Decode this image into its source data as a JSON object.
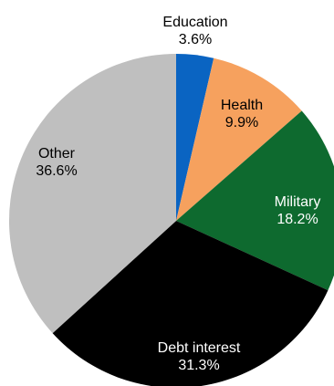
{
  "chart_data": {
    "type": "pie",
    "title": "",
    "start_angle_deg": 0,
    "direction": "clockwise",
    "slices": [
      {
        "label": "Education",
        "value": 3.6,
        "value_label": "3.6%",
        "color": "#0a64c2",
        "text_color": "#000000"
      },
      {
        "label": "Health",
        "value": 9.9,
        "value_label": "9.9%",
        "color": "#f6a15e",
        "text_color": "#000000"
      },
      {
        "label": "Military",
        "value": 18.2,
        "value_label": "18.2%",
        "color": "#0e6a2f",
        "text_color": "#ffffff"
      },
      {
        "label": "Debt interest",
        "value": 31.3,
        "value_label": "31.3%",
        "color": "#000000",
        "text_color": "#ffffff"
      },
      {
        "label": "Other",
        "value": 36.6,
        "value_label": "36.6%",
        "color": "#bfbfbf",
        "text_color": "#000000"
      }
    ]
  }
}
